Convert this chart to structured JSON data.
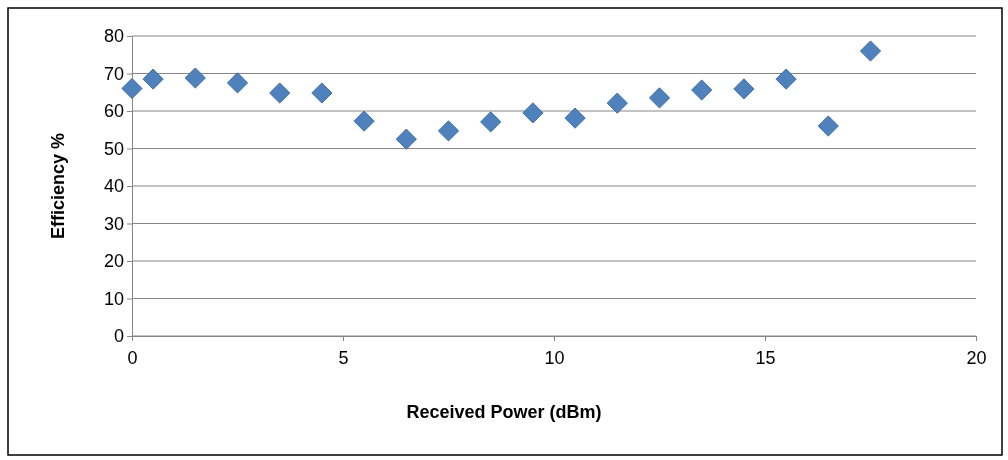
{
  "chart_data": {
    "type": "scatter",
    "xlabel": "Received Power (dBm)",
    "ylabel": "Efficiency %",
    "x": [
      0,
      0.5,
      1.5,
      2.5,
      3.5,
      4.5,
      5.5,
      6.5,
      7.5,
      8.5,
      9.5,
      10.5,
      11.5,
      12.5,
      13.5,
      14.5,
      15.5,
      16.5,
      17.5
    ],
    "series": [
      {
        "color": "#4f81bd",
        "values": [
          66,
          68.5,
          68.8,
          67.5,
          64.8,
          64.8,
          57.3,
          52.5,
          54.7,
          57.1,
          59.5,
          58.1,
          62.1,
          63.5,
          65.6,
          65.9,
          68.5,
          56,
          76
        ]
      }
    ],
    "xlim": [
      0,
      20
    ],
    "xticks": [
      0,
      5,
      10,
      15,
      20
    ],
    "ylim": [
      0,
      80
    ],
    "yticks": [
      0,
      10,
      20,
      30,
      40,
      50,
      60,
      70,
      80
    ],
    "grid": "y",
    "marker": "diamond"
  }
}
